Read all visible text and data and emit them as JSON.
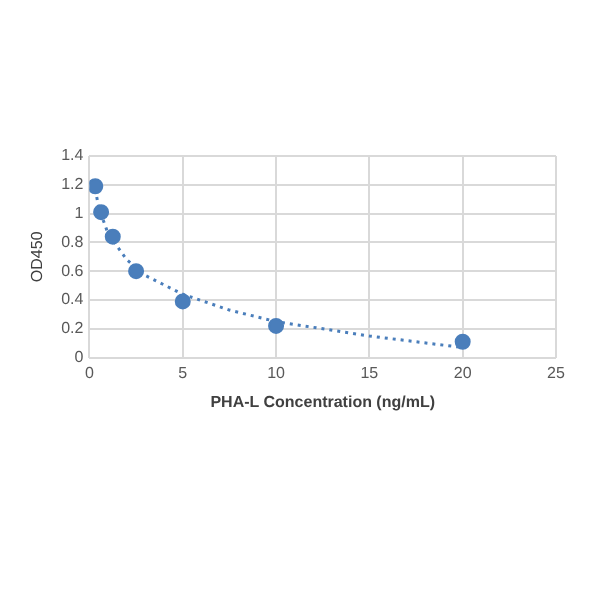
{
  "chart_data": {
    "type": "scatter",
    "xlabel": "PHA-L Concentration (ng/mL)",
    "ylabel": "OD450",
    "xlim": [
      0,
      25
    ],
    "xticks": [
      0,
      5,
      10,
      15,
      20,
      25
    ],
    "ylim": [
      0,
      1.4
    ],
    "yticks": [
      0,
      0.2,
      0.4,
      0.6,
      0.8,
      1,
      1.2,
      1.4
    ],
    "grid": true,
    "marker": "circle",
    "series": [
      {
        "color": "#4a7ebb",
        "x": [
          0.3125,
          0.625,
          1.25,
          2.5,
          5,
          10,
          20
        ],
        "values": [
          1.19,
          1.01,
          0.84,
          0.6,
          0.39,
          0.22,
          0.11
        ]
      },
      {
        "type": "line",
        "line_style": "dotted",
        "marker": "none",
        "color": "#4a7ebb",
        "x": [
          0.3125,
          0.5,
          1,
          2,
          3,
          5,
          7.5,
          10,
          15,
          20
        ],
        "values": [
          1.17,
          1.04,
          0.86,
          0.68,
          0.57,
          0.44,
          0.33,
          0.25,
          0.15,
          0.07
        ]
      }
    ]
  }
}
